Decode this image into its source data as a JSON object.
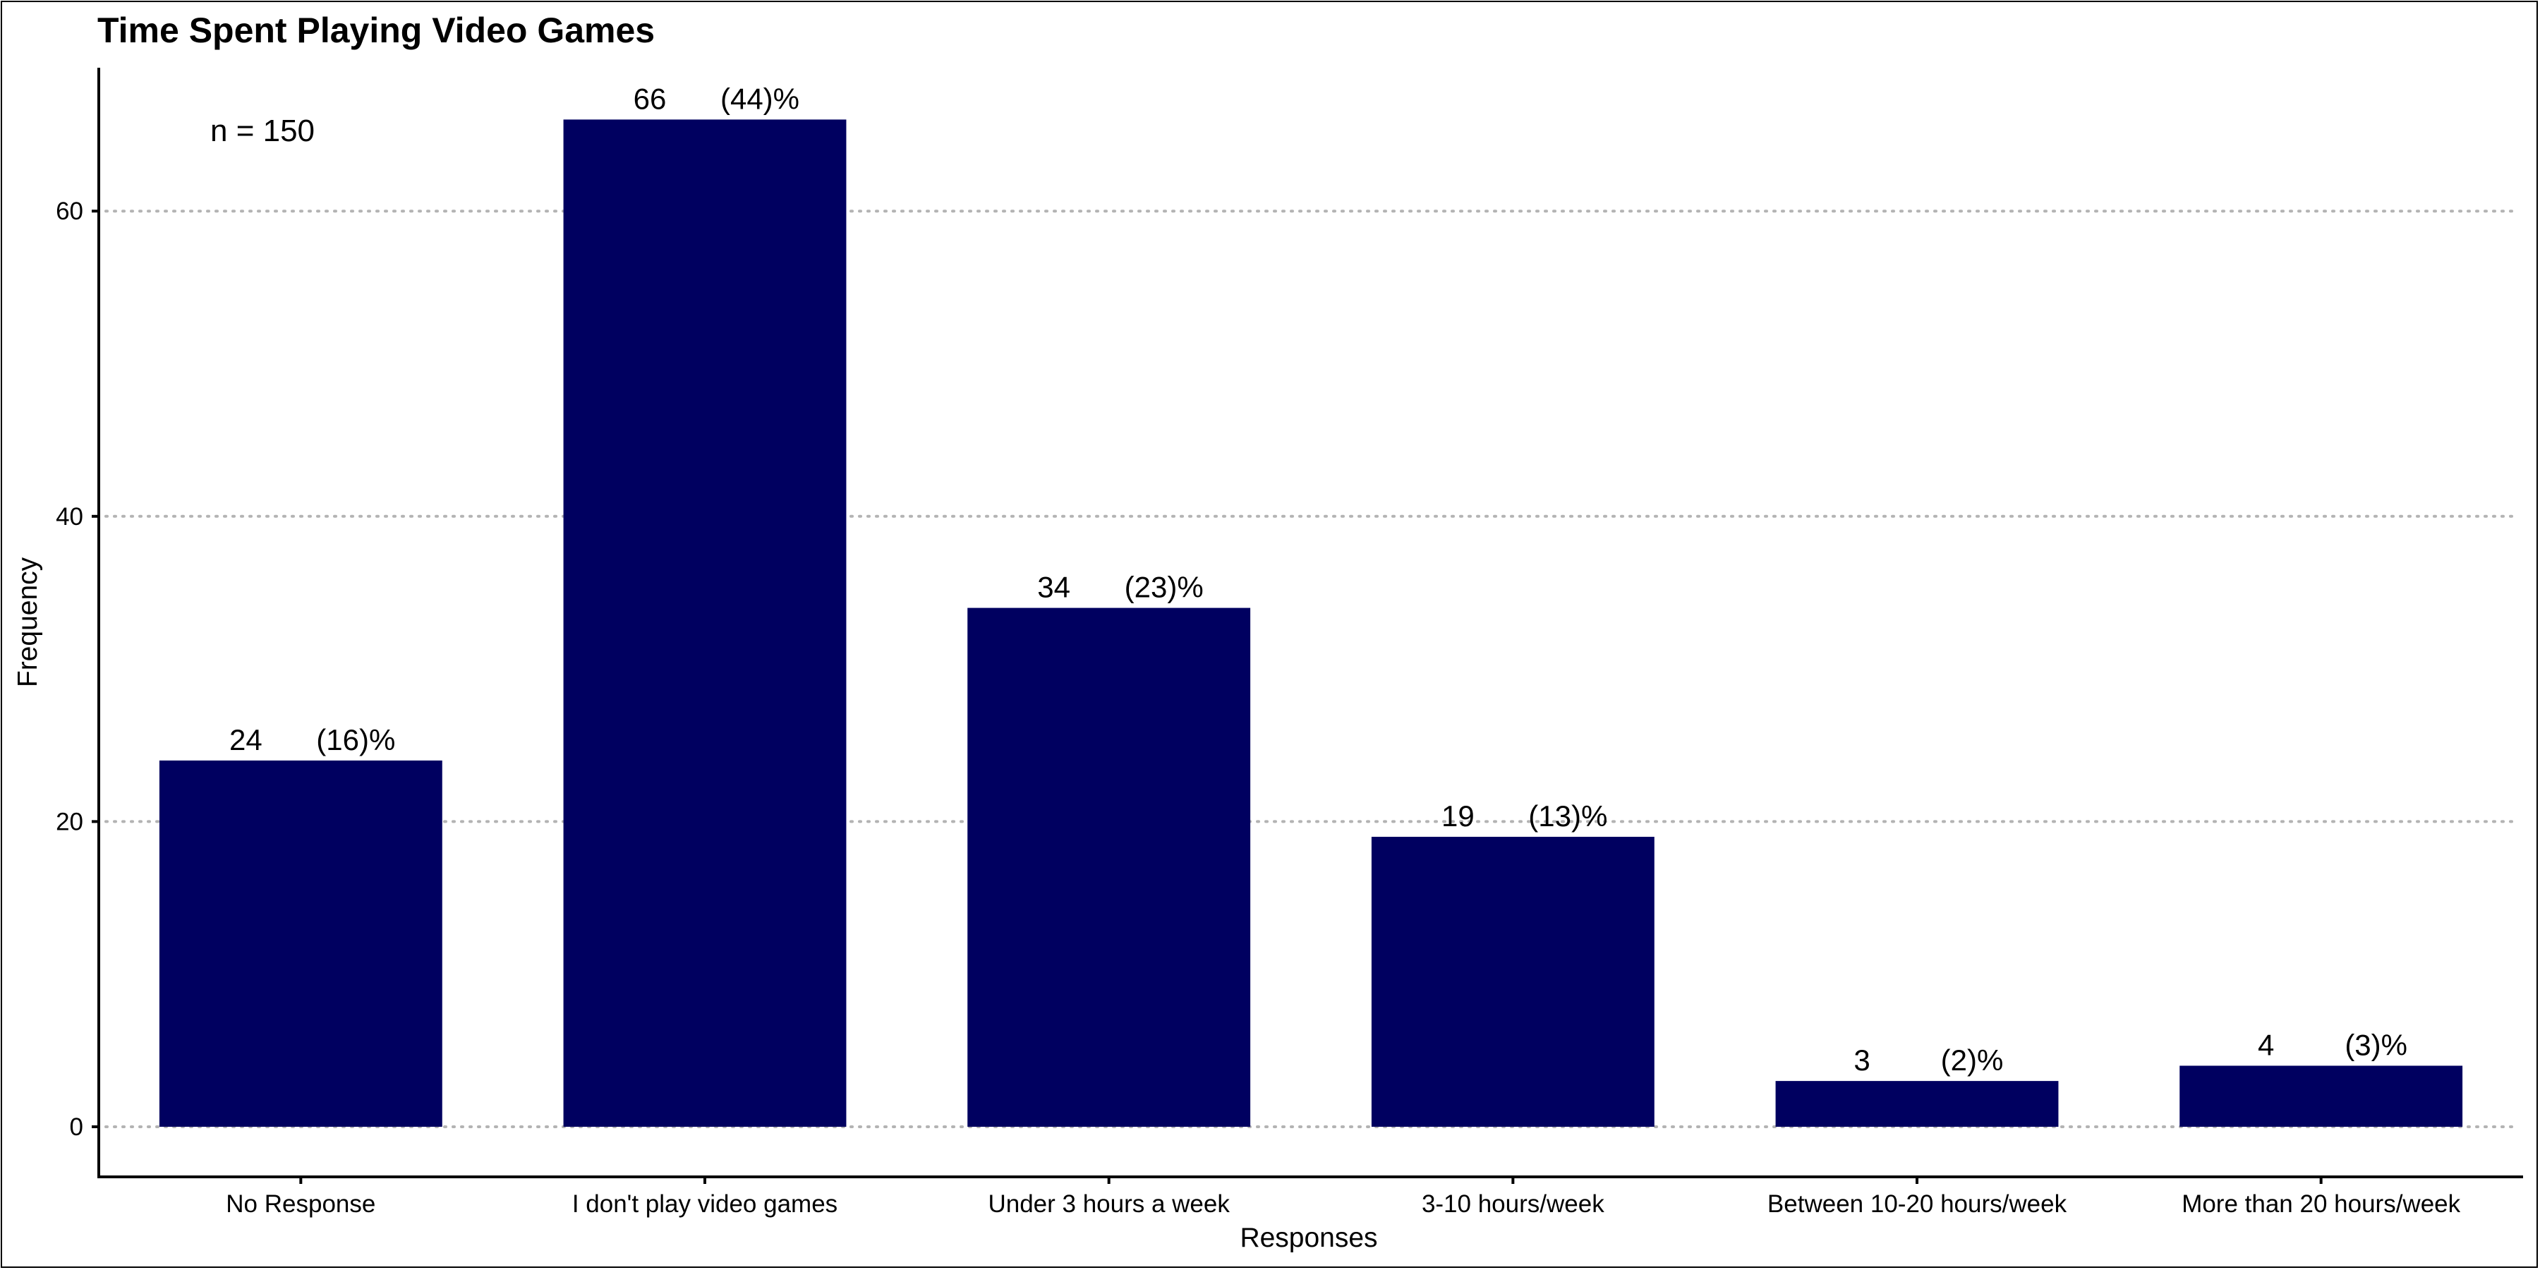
{
  "chart_data": {
    "type": "bar",
    "title": "Time Spent Playing Video Games",
    "xlabel": "Responses",
    "ylabel": "Frequency",
    "annotation": "n = 150",
    "categories": [
      "No Response",
      "I don't play video games",
      "Under 3 hours a week",
      "3-10 hours/week",
      "Between 10-20 hours/week",
      "More than 20 hours/week"
    ],
    "values": [
      24,
      66,
      34,
      19,
      3,
      4
    ],
    "percent_labels": [
      "(16)%",
      "(44)%",
      "(23)%",
      "(13)%",
      "(2)%",
      "(3)%"
    ],
    "ylim": [
      0,
      69
    ],
    "yticks": [
      0,
      20,
      40,
      60
    ],
    "grid": "horizontal dotted",
    "bar_color": "#000060"
  }
}
